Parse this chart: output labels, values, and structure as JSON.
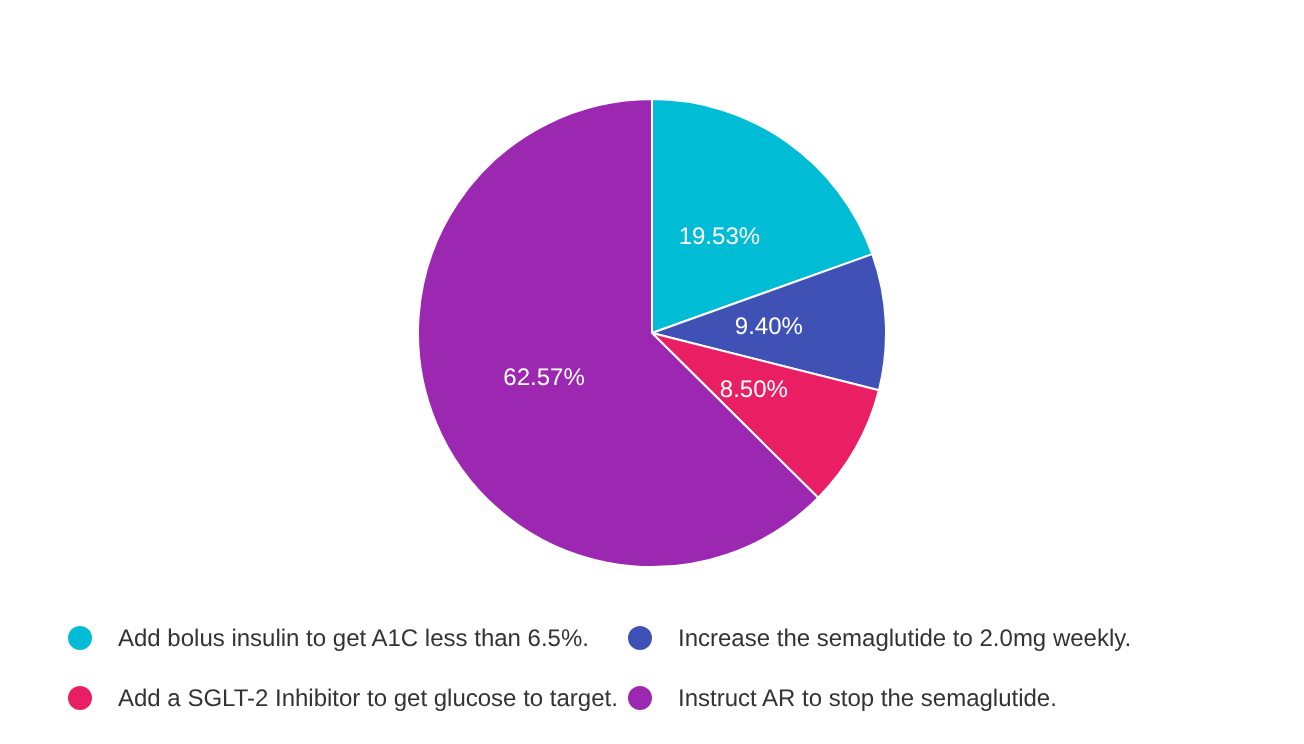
{
  "chart_data": {
    "type": "pie",
    "categories": [
      "Add bolus insulin to get A1C less than 6.5%.",
      "Increase the semaglutide to 2.0mg weekly.",
      "Add a SGLT-2 Inhibitor to get glucose to target.",
      "Instruct AR to stop the semaglutide."
    ],
    "values": [
      19.53,
      9.4,
      8.5,
      62.57
    ],
    "colors": [
      "#00bcd4",
      "#3f51b5",
      "#e91e63",
      "#9c27b0"
    ],
    "value_labels": [
      "19.53%",
      "9.40%",
      "8.50%",
      "62.57%"
    ],
    "legend": "bottom",
    "marker": "circle"
  }
}
